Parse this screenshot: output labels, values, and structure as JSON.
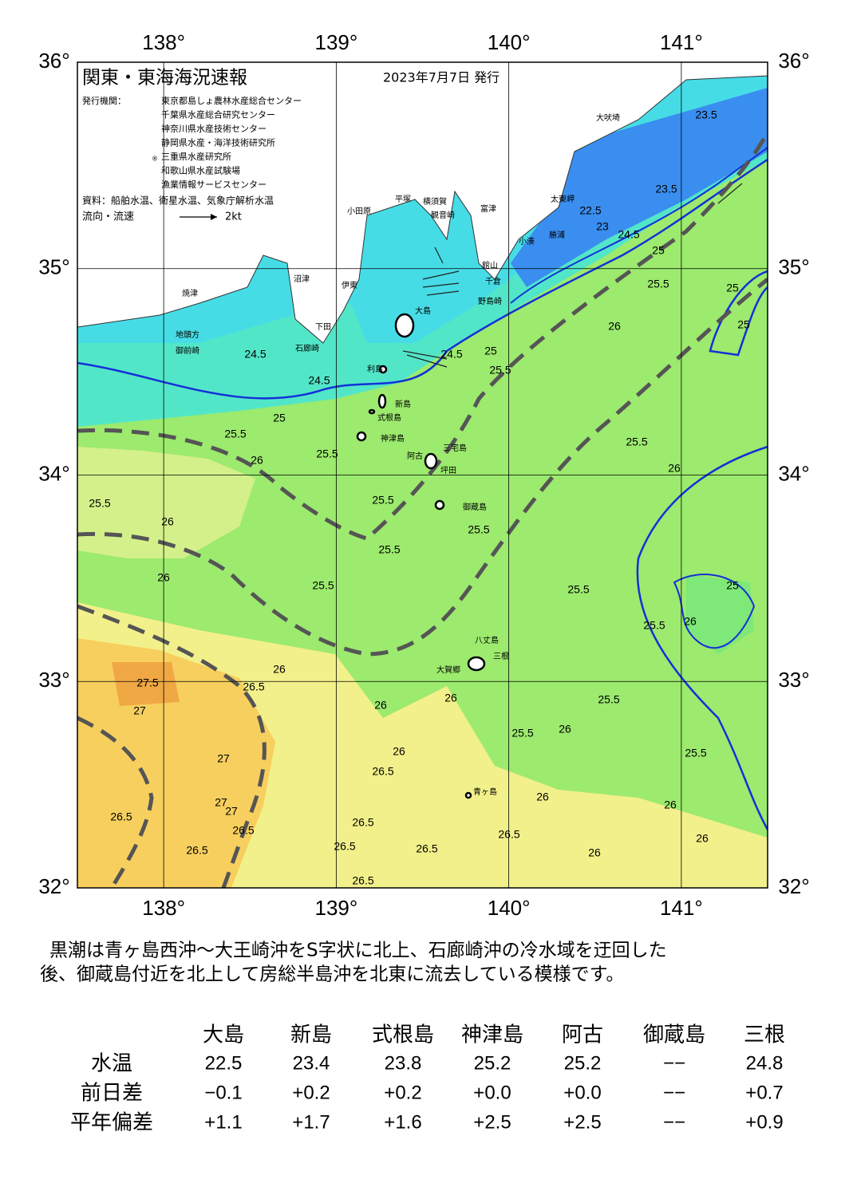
{
  "map": {
    "title": "関東・東海海況速報",
    "date": "2023年7月7日 発行",
    "issuers_label": "発行機関：",
    "issuers": [
      "東京都島しょ農林水産総合センター",
      "千葉県水産総合研究センター",
      "神奈川県水産技術センター",
      "静岡県水産・海洋技術研究所",
      "三重県水産研究所",
      "和歌山県水産試験場",
      "漁業情報サービスセンター"
    ],
    "sources": "資料：船舶水温、衛星水温、気象庁解析水温",
    "legend_flow": "流向・流速",
    "legend_speed": "2kt",
    "lon_ticks": [
      "138°",
      "139°",
      "140°",
      "141°"
    ],
    "lat_ticks": [
      "36°",
      "35°",
      "34°",
      "33°",
      "32°"
    ],
    "place_names": [
      "大吠埼",
      "太東岬",
      "勝浦",
      "小湊",
      "館山",
      "千倉",
      "野島崎",
      "富津",
      "横須賀",
      "観音崎",
      "平塚",
      "小田原",
      "沼津",
      "伊東",
      "焼津",
      "御前崎",
      "地頭方",
      "下田",
      "石廊崎",
      "大島",
      "利島",
      "新島",
      "式根島",
      "神津島",
      "三宅島",
      "阿古",
      "坪田",
      "御蔵島",
      "八丈島",
      "三根",
      "大賀郷",
      "青ヶ島"
    ],
    "contour_labels": [
      "23.5",
      "23.5",
      "22.5",
      "23",
      "24.5",
      "25",
      "25.5",
      "25",
      "25",
      "26",
      "25",
      "25.5",
      "24.5",
      "24.5",
      "24.5",
      "25",
      "25.5",
      "25.5",
      "26",
      "25.5",
      "26",
      "25.5",
      "25.5",
      "25.5",
      "25.5",
      "26",
      "25.5",
      "26",
      "25.5",
      "25",
      "25.5",
      "26",
      "26",
      "27.5",
      "27",
      "26.5",
      "26",
      "26",
      "25.5",
      "25.5",
      "26",
      "26",
      "26.5",
      "27",
      "26.5",
      "27",
      "27",
      "26.5",
      "26.5",
      "26.5",
      "26",
      "26",
      "25.5",
      "26",
      "26.5",
      "26.5",
      "26.5",
      "26",
      "26.5"
    ]
  },
  "summary": [
    "黒潮は青ヶ島西沖～大王崎沖をS字状に北上、石廊崎沖の冷水域を迂回した",
    "後、御蔵島付近を北上して房総半島沖を北東に流去している模様です。"
  ],
  "table": {
    "columns": [
      "大島",
      "新島",
      "式根島",
      "神津島",
      "阿古",
      "御蔵島",
      "三根"
    ],
    "rows": [
      {
        "label": "水温",
        "values": [
          "22.5",
          "23.4",
          "23.8",
          "25.2",
          "25.2",
          "−−",
          "24.8"
        ]
      },
      {
        "label": "前日差",
        "values": [
          "−0.1",
          "+0.2",
          "+0.2",
          "+0.0",
          "+0.0",
          "−−",
          "+0.7"
        ]
      },
      {
        "label": "平年偏差",
        "values": [
          "+1.1",
          "+1.7",
          "+1.6",
          "+2.5",
          "+2.5",
          "−−",
          "+0.9"
        ]
      }
    ]
  }
}
